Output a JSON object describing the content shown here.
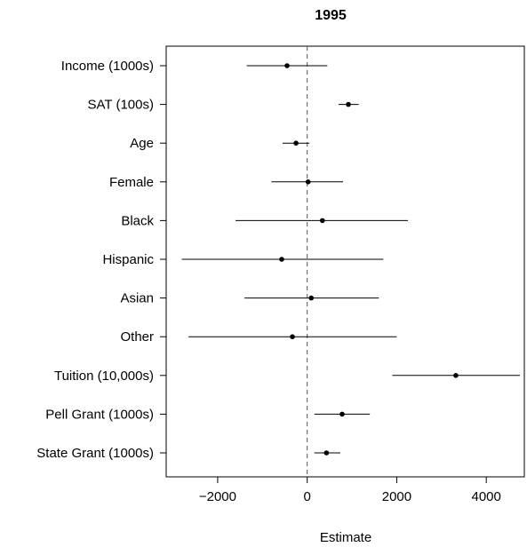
{
  "chart_data": {
    "type": "dot-whisker",
    "title": "1995",
    "xlabel": "Estimate",
    "ylabel": "",
    "xlim": [
      -3150,
      4850
    ],
    "x_ticks": [
      -2000,
      0,
      2000,
      4000
    ],
    "x_tick_labels": [
      "−2000",
      "0",
      "2000",
      "4000"
    ],
    "reference_line": 0,
    "grid": false,
    "categories": [
      "Income (1000s)",
      "SAT (100s)",
      "Age",
      "Female",
      "Black",
      "Hispanic",
      "Asian",
      "Other",
      "Tuition (10,000s)",
      "Pell Grant (1000s)",
      "State Grant (1000s)"
    ],
    "estimates": [
      -450,
      920,
      -250,
      20,
      340,
      -570,
      90,
      -330,
      3320,
      780,
      430
    ],
    "lower": [
      -1350,
      700,
      -550,
      -800,
      -1600,
      -2800,
      -1400,
      -2650,
      1900,
      160,
      160
    ],
    "upper": [
      450,
      1150,
      50,
      800,
      2250,
      1700,
      1600,
      2000,
      4750,
      1400,
      740
    ]
  }
}
